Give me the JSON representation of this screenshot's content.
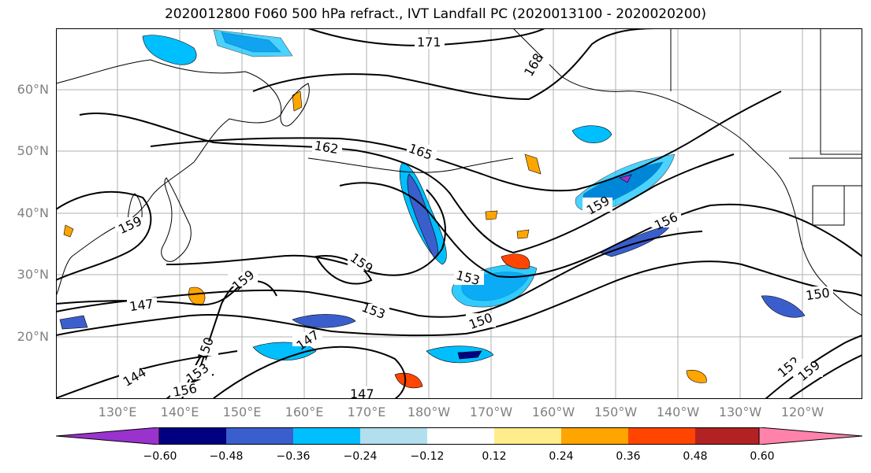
{
  "title": "2020012800 F060 500 hPa refract., IVT Landfall PC (2020013100 - 2020020200)",
  "lat_labels": [
    "60°N",
    "50°N",
    "40°N",
    "30°N",
    "20°N"
  ],
  "lon_labels": [
    "130°E",
    "140°E",
    "150°E",
    "160°E",
    "170°E",
    "180°W",
    "170°W",
    "160°W",
    "150°W",
    "140°W",
    "130°W",
    "120°W"
  ],
  "contour_labels": [
    "171",
    "168",
    "162",
    "165",
    "159",
    "159",
    "159",
    "147",
    "153",
    "153",
    "150",
    "159",
    "156",
    "150",
    "147",
    "150",
    "144",
    "153",
    "156",
    "147",
    "152",
    "159"
  ],
  "colorbar": {
    "ticks": [
      "−0.60",
      "−0.48",
      "−0.36",
      "−0.24",
      "−0.12",
      "0.12",
      "0.24",
      "0.36",
      "0.48",
      "0.60"
    ],
    "colors": [
      "#9a32cd",
      "#000080",
      "#3a5fcd",
      "#00bfff",
      "#b2dfee",
      "#ffffff",
      "#ffec8b",
      "#ffa500",
      "#ff4500",
      "#b22222",
      "#ff82ab"
    ]
  },
  "style": {
    "contour_color": "#000000",
    "grid_color": "#b0b0b0",
    "label_color": "#808080"
  }
}
